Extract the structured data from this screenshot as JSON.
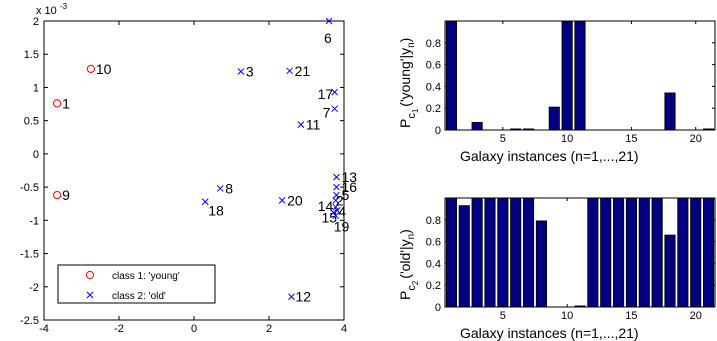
{
  "chart_data": [
    {
      "type": "scatter",
      "title": "",
      "xlabel": "",
      "ylabel": "",
      "y_exponent_label": "x 10",
      "y_exponent_power": "-3",
      "xlim": [
        -4,
        4
      ],
      "ylim": [
        -2.5,
        2
      ],
      "xticks": [
        -4,
        -2,
        0,
        2,
        4
      ],
      "yticks": [
        -2.5,
        -2,
        -1.5,
        -1,
        -0.5,
        0,
        0.5,
        1,
        1.5,
        2
      ],
      "grid": false,
      "legend_position": "bottom-left",
      "series": [
        {
          "name": "class 1: 'young'",
          "marker": "o",
          "color": "#ff0000",
          "points": [
            {
              "label": "10",
              "x": -2.75,
              "y": 1.28
            },
            {
              "label": "1",
              "x": -3.65,
              "y": 0.76
            },
            {
              "label": "9",
              "x": -3.65,
              "y": -0.62
            }
          ]
        },
        {
          "name": "class 2: 'old'",
          "marker": "x",
          "color": "#0000ff",
          "points": [
            {
              "label": "6",
              "x": 3.6,
              "y": 2.0
            },
            {
              "label": "3",
              "x": 1.25,
              "y": 1.24
            },
            {
              "label": "21",
              "x": 2.55,
              "y": 1.25
            },
            {
              "label": "17",
              "x": 3.75,
              "y": 0.93
            },
            {
              "label": "7",
              "x": 3.75,
              "y": 0.68
            },
            {
              "label": "11",
              "x": 2.85,
              "y": 0.44
            },
            {
              "label": "13",
              "x": 3.8,
              "y": -0.35
            },
            {
              "label": "8",
              "x": 0.7,
              "y": -0.52
            },
            {
              "label": "16",
              "x": 3.8,
              "y": -0.5
            },
            {
              "label": "5",
              "x": 3.8,
              "y": -0.62
            },
            {
              "label": "2",
              "x": 3.78,
              "y": -0.7
            },
            {
              "label": "18",
              "x": 0.3,
              "y": -0.72
            },
            {
              "label": "20",
              "x": 2.35,
              "y": -0.7
            },
            {
              "label": "14",
              "x": 3.78,
              "y": -0.8
            },
            {
              "label": "4",
              "x": 3.82,
              "y": -0.85
            },
            {
              "label": "15",
              "x": 3.72,
              "y": -0.88
            },
            {
              "label": "19",
              "x": 3.78,
              "y": -0.93
            },
            {
              "label": "12",
              "x": 2.6,
              "y": -2.15
            }
          ]
        }
      ]
    },
    {
      "type": "bar",
      "title": "",
      "xlabel": "Galaxy instances (n=1,...,21)",
      "ylabel_main": "P",
      "ylabel_sub": "c",
      "ylabel_subsub": "1",
      "ylabel_paren": "('young'|y",
      "ylabel_paren_sub": "n",
      "ylabel_paren_close": ")",
      "xlim": [
        0.5,
        21.5
      ],
      "ylim": [
        0,
        1
      ],
      "xticks": [
        5,
        10,
        15,
        20
      ],
      "yticks": [
        0,
        0.2,
        0.4,
        0.6,
        0.8
      ],
      "color": "#000080",
      "categories": [
        1,
        2,
        3,
        4,
        5,
        6,
        7,
        8,
        9,
        10,
        11,
        12,
        13,
        14,
        15,
        16,
        17,
        18,
        19,
        20,
        21
      ],
      "values": [
        1.0,
        0.0,
        0.07,
        0.0,
        0.0,
        0.01,
        0.01,
        0.0,
        0.21,
        1.0,
        1.0,
        0.0,
        0.0,
        0.0,
        0.0,
        0.0,
        0.0,
        0.34,
        0.0,
        0.0,
        0.01
      ]
    },
    {
      "type": "bar",
      "title": "",
      "xlabel": "Galaxy instances (n=1,...,21)",
      "ylabel_main": "P",
      "ylabel_sub": "c",
      "ylabel_subsub": "2",
      "ylabel_paren": "('old'|y",
      "ylabel_paren_sub": "n",
      "ylabel_paren_close": ")",
      "xlim": [
        0.5,
        21.5
      ],
      "ylim": [
        0,
        1
      ],
      "xticks": [
        5,
        10,
        15,
        20
      ],
      "yticks": [
        0,
        0.2,
        0.4,
        0.6,
        0.8
      ],
      "color": "#000080",
      "categories": [
        1,
        2,
        3,
        4,
        5,
        6,
        7,
        8,
        9,
        10,
        11,
        12,
        13,
        14,
        15,
        16,
        17,
        18,
        19,
        20,
        21
      ],
      "values": [
        1.0,
        0.93,
        1.0,
        1.0,
        1.0,
        1.0,
        1.0,
        0.79,
        0.0,
        0.0,
        0.01,
        1.0,
        1.0,
        1.0,
        1.0,
        1.0,
        1.0,
        0.66,
        1.0,
        1.0,
        1.0
      ]
    }
  ]
}
